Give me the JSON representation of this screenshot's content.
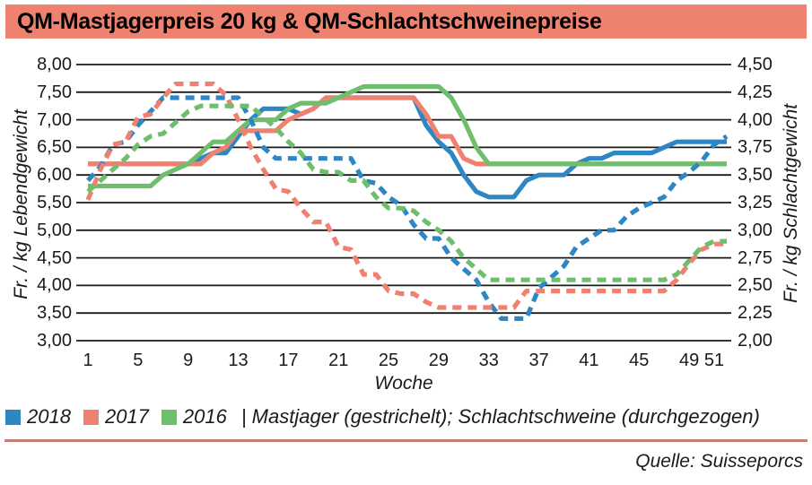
{
  "title": "QM-Mastjagerpreis 20 kg & QM-Schlachtschweinepreise",
  "source": "Quelle: Suisseporcs",
  "colors": {
    "blue_2018": "#2e86c4",
    "red_2017": "#ee8170",
    "green_2016": "#6fbe6e",
    "title_bar_bg": "#ee8170",
    "bottom_rule": "#c87d72",
    "grid": "#1a1a1a"
  },
  "legend": {
    "items": [
      {
        "label": "2018",
        "color": "#2e86c4"
      },
      {
        "label": "2017",
        "color": "#ee8170"
      },
      {
        "label": "2016",
        "color": "#6fbe6e"
      }
    ],
    "note": "| Mastjager (gestrichelt); Schlachtschweine (durchgezogen)"
  },
  "chart_data": {
    "type": "line",
    "title": "QM-Mastjagerpreis 20 kg & QM-Schlachtschweinepreise",
    "xlabel": "Woche",
    "x_ticks": [
      1,
      5,
      9,
      13,
      17,
      21,
      25,
      29,
      33,
      37,
      41,
      45,
      49,
      51
    ],
    "weeks_range": [
      1,
      52
    ],
    "grid": "horizontal",
    "left_axis": {
      "label": "Fr. / kg Lebendgewicht",
      "min": 3.0,
      "max": 8.0,
      "step": 0.5,
      "tick_labels": [
        "8,00",
        "7,50",
        "7,00",
        "6,50",
        "6,00",
        "5,50",
        "5,00",
        "4,50",
        "4,00",
        "3,50",
        "3,00"
      ]
    },
    "right_axis": {
      "label": "Fr. / kg Schlachtgewicht",
      "min": 2.0,
      "max": 4.5,
      "step": 0.25,
      "tick_labels": [
        "4,50",
        "4,25",
        "4,00",
        "3,75",
        "3,50",
        "3,25",
        "3,00",
        "2,75",
        "2,50",
        "2,25",
        "2,00"
      ]
    },
    "series": [
      {
        "id": "2018-schlachtschweine",
        "name": "2018 Schlachtschweine",
        "style": "solid",
        "axis": "right",
        "color": "#2e86c4",
        "values": [
          3.6,
          3.6,
          3.6,
          3.6,
          3.6,
          3.6,
          3.6,
          3.6,
          3.6,
          3.65,
          3.7,
          3.7,
          3.85,
          4.0,
          4.1,
          4.1,
          4.1,
          4.05,
          4.1,
          4.2,
          4.2,
          4.2,
          4.2,
          4.2,
          4.2,
          4.2,
          4.2,
          3.95,
          3.8,
          3.7,
          3.5,
          3.35,
          3.3,
          3.3,
          3.3,
          3.45,
          3.5,
          3.5,
          3.5,
          3.6,
          3.65,
          3.65,
          3.7,
          3.7,
          3.7,
          3.7,
          3.75,
          3.8,
          3.8,
          3.8,
          3.8,
          3.8
        ]
      },
      {
        "id": "2017-schlachtschweine",
        "name": "2017 Schlachtschweine",
        "style": "solid",
        "axis": "right",
        "color": "#ee8170",
        "values": [
          3.6,
          3.6,
          3.6,
          3.6,
          3.6,
          3.6,
          3.6,
          3.6,
          3.6,
          3.6,
          3.7,
          3.75,
          3.9,
          3.9,
          3.9,
          3.9,
          4.0,
          4.05,
          4.1,
          4.2,
          4.2,
          4.2,
          4.2,
          4.2,
          4.2,
          4.2,
          4.2,
          4.05,
          3.85,
          3.85,
          3.65,
          3.6,
          3.6,
          3.6,
          3.6,
          3.6,
          3.6,
          3.6,
          3.6,
          3.6,
          3.6,
          3.6,
          3.6,
          3.6,
          3.6,
          3.6,
          3.6,
          3.6,
          3.6,
          3.6,
          3.6,
          3.6
        ]
      },
      {
        "id": "2016-schlachtschweine",
        "name": "2016 Schlachtschweine",
        "style": "solid",
        "axis": "right",
        "color": "#6fbe6e",
        "values": [
          3.4,
          3.4,
          3.4,
          3.4,
          3.4,
          3.4,
          3.5,
          3.55,
          3.6,
          3.7,
          3.8,
          3.8,
          3.9,
          4.0,
          4.0,
          4.0,
          4.1,
          4.15,
          4.15,
          4.15,
          4.2,
          4.25,
          4.3,
          4.3,
          4.3,
          4.3,
          4.3,
          4.3,
          4.3,
          4.2,
          4.0,
          3.75,
          3.6,
          3.6,
          3.6,
          3.6,
          3.6,
          3.6,
          3.6,
          3.6,
          3.6,
          3.6,
          3.6,
          3.6,
          3.6,
          3.6,
          3.6,
          3.6,
          3.6,
          3.6,
          3.6,
          3.6
        ]
      },
      {
        "id": "2018-mastjager",
        "name": "2018 Mastjager",
        "style": "dashed",
        "axis": "left",
        "color": "#2e86c4",
        "values": [
          5.9,
          6.15,
          6.55,
          6.6,
          6.9,
          7.15,
          7.4,
          7.4,
          7.4,
          7.4,
          7.4,
          7.4,
          7.4,
          7.0,
          6.5,
          6.3,
          6.3,
          6.3,
          6.3,
          6.3,
          6.3,
          6.3,
          5.9,
          5.85,
          5.6,
          5.45,
          5.1,
          4.85,
          4.85,
          4.5,
          4.3,
          4.1,
          3.7,
          3.4,
          3.4,
          3.4,
          3.95,
          4.15,
          4.35,
          4.7,
          4.85,
          5.0,
          5.0,
          5.25,
          5.4,
          5.5,
          5.6,
          5.9,
          6.05,
          6.25,
          6.55,
          6.7
        ]
      },
      {
        "id": "2017-mastjager",
        "name": "2017 Mastjager",
        "style": "dashed",
        "axis": "left",
        "color": "#ee8170",
        "values": [
          5.55,
          6.1,
          6.55,
          6.6,
          7.05,
          7.1,
          7.4,
          7.65,
          7.65,
          7.65,
          7.65,
          7.45,
          7.0,
          6.5,
          6.1,
          5.75,
          5.7,
          5.4,
          5.15,
          5.15,
          4.7,
          4.65,
          4.2,
          4.2,
          3.9,
          3.85,
          3.85,
          3.7,
          3.6,
          3.6,
          3.6,
          3.6,
          3.6,
          3.6,
          3.6,
          3.9,
          3.9,
          3.9,
          3.9,
          3.9,
          3.9,
          3.9,
          3.9,
          3.9,
          3.9,
          3.9,
          3.9,
          4.1,
          4.4,
          4.65,
          4.75,
          4.75
        ]
      },
      {
        "id": "2016-mastjager",
        "name": "2016 Mastjager",
        "style": "dashed",
        "axis": "left",
        "color": "#6fbe6e",
        "values": [
          5.7,
          5.9,
          6.1,
          6.3,
          6.55,
          6.7,
          6.75,
          6.95,
          7.15,
          7.25,
          7.25,
          7.25,
          7.25,
          7.25,
          7.05,
          6.85,
          6.6,
          6.4,
          6.1,
          6.05,
          6.05,
          5.9,
          5.9,
          5.6,
          5.4,
          5.4,
          5.35,
          5.15,
          5.0,
          4.8,
          4.5,
          4.3,
          4.1,
          4.1,
          4.1,
          4.1,
          4.1,
          4.1,
          4.1,
          4.1,
          4.1,
          4.1,
          4.1,
          4.1,
          4.1,
          4.1,
          4.1,
          4.2,
          4.45,
          4.7,
          4.8,
          4.8
        ]
      }
    ]
  }
}
